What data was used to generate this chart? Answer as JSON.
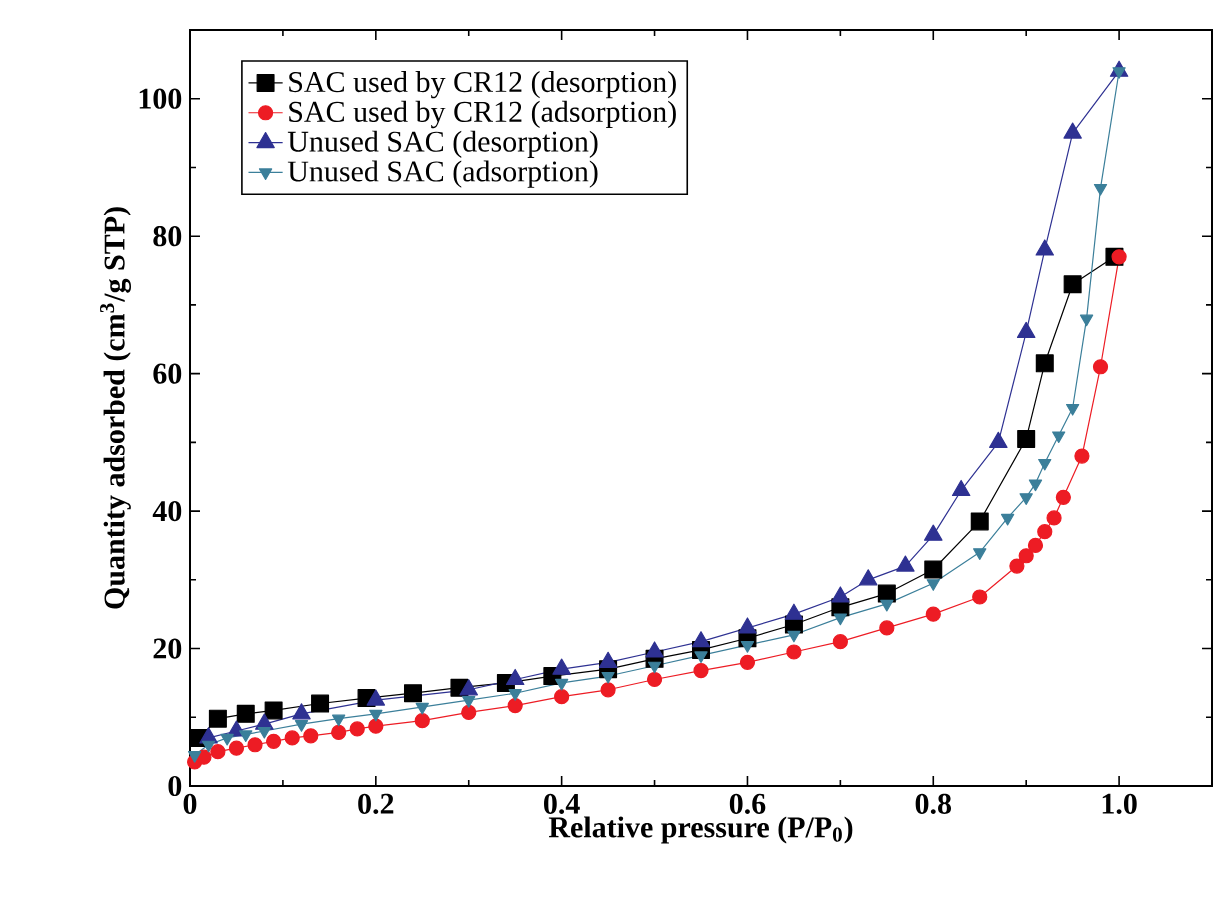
{
  "chart_data": {
    "type": "line",
    "xlabel": "**Relative pressure (P/P$_{0}$)**",
    "ylabel": "**Quantity adsorbed (cm$^{3}$/g STP)**",
    "xlim": [
      0,
      1.1
    ],
    "xticks": [
      0,
      0.2,
      0.4,
      0.6,
      0.8,
      {
        "value": 1.0,
        "label": "1.0"
      }
    ],
    "ylim": [
      0,
      110
    ],
    "yticks": [
      0,
      20,
      40,
      60,
      80,
      100
    ],
    "legend": "top left",
    "grid": false,
    "line_style": "solid",
    "series": [
      {
        "name": "SAC used by CR12 (desorption)",
        "color": "#000000",
        "marker": "square",
        "x": [
          0.01,
          0.03,
          0.06,
          0.09,
          0.14,
          0.19,
          0.24,
          0.29,
          0.34,
          0.39,
          0.45,
          0.5,
          0.55,
          0.6,
          0.65,
          0.7,
          0.75,
          0.8,
          0.85,
          0.9,
          0.92,
          0.95,
          0.995
        ],
        "values": [
          7,
          9.8,
          10.5,
          11,
          12,
          12.8,
          13.5,
          14.3,
          15,
          16,
          17,
          18.5,
          19.8,
          21.5,
          23.5,
          26,
          28,
          31.5,
          38.5,
          50.5,
          61.5,
          73,
          77
        ]
      },
      {
        "name": "SAC used by CR12 (adsorption)",
        "color": "#ed1c24",
        "marker": "circle",
        "x": [
          0.005,
          0.015,
          0.03,
          0.05,
          0.07,
          0.09,
          0.11,
          0.13,
          0.16,
          0.18,
          0.2,
          0.25,
          0.3,
          0.35,
          0.4,
          0.45,
          0.5,
          0.55,
          0.6,
          0.65,
          0.7,
          0.75,
          0.8,
          0.85,
          0.89,
          0.9,
          0.91,
          0.92,
          0.93,
          0.94,
          0.96,
          0.98,
          1.0
        ],
        "values": [
          3.5,
          4.2,
          5,
          5.5,
          6,
          6.5,
          7,
          7.3,
          7.8,
          8.3,
          8.7,
          9.5,
          10.7,
          11.7,
          13,
          14,
          15.5,
          16.8,
          18,
          19.5,
          21,
          23,
          25,
          27.5,
          32,
          33.5,
          35,
          37,
          39,
          42,
          48,
          61,
          77
        ]
      },
      {
        "name": "Unused SAC (desorption)",
        "color": "#2e3192",
        "marker": "triangle",
        "x": [
          0.02,
          0.05,
          0.08,
          0.12,
          0.2,
          0.3,
          0.35,
          0.4,
          0.45,
          0.5,
          0.55,
          0.6,
          0.65,
          0.7,
          0.73,
          0.77,
          0.8,
          0.83,
          0.87,
          0.9,
          0.92,
          0.95,
          1.0
        ],
        "values": [
          7,
          8,
          9,
          10.5,
          12.5,
          14,
          15.5,
          17,
          18,
          19.5,
          21,
          23,
          25,
          27.5,
          30,
          32,
          36.5,
          43,
          50,
          66,
          78,
          95,
          104
        ]
      },
      {
        "name": "Unused SAC (adsorption)",
        "color": "#3b7f9a",
        "marker": "triangle down",
        "x": [
          0.005,
          0.02,
          0.04,
          0.06,
          0.08,
          0.12,
          0.16,
          0.2,
          0.25,
          0.3,
          0.35,
          0.4,
          0.45,
          0.5,
          0.55,
          0.6,
          0.65,
          0.7,
          0.75,
          0.8,
          0.85,
          0.88,
          0.9,
          0.91,
          0.92,
          0.935,
          0.95,
          0.965,
          0.98,
          1.0
        ],
        "values": [
          4.5,
          6,
          7,
          7.5,
          8,
          9,
          9.8,
          10.5,
          11.5,
          12.5,
          13.5,
          15,
          16,
          17.5,
          19,
          20.5,
          22,
          24.5,
          26.5,
          29.5,
          34,
          39,
          42,
          44,
          47,
          51,
          55,
          68,
          87,
          104
        ]
      }
    ]
  }
}
